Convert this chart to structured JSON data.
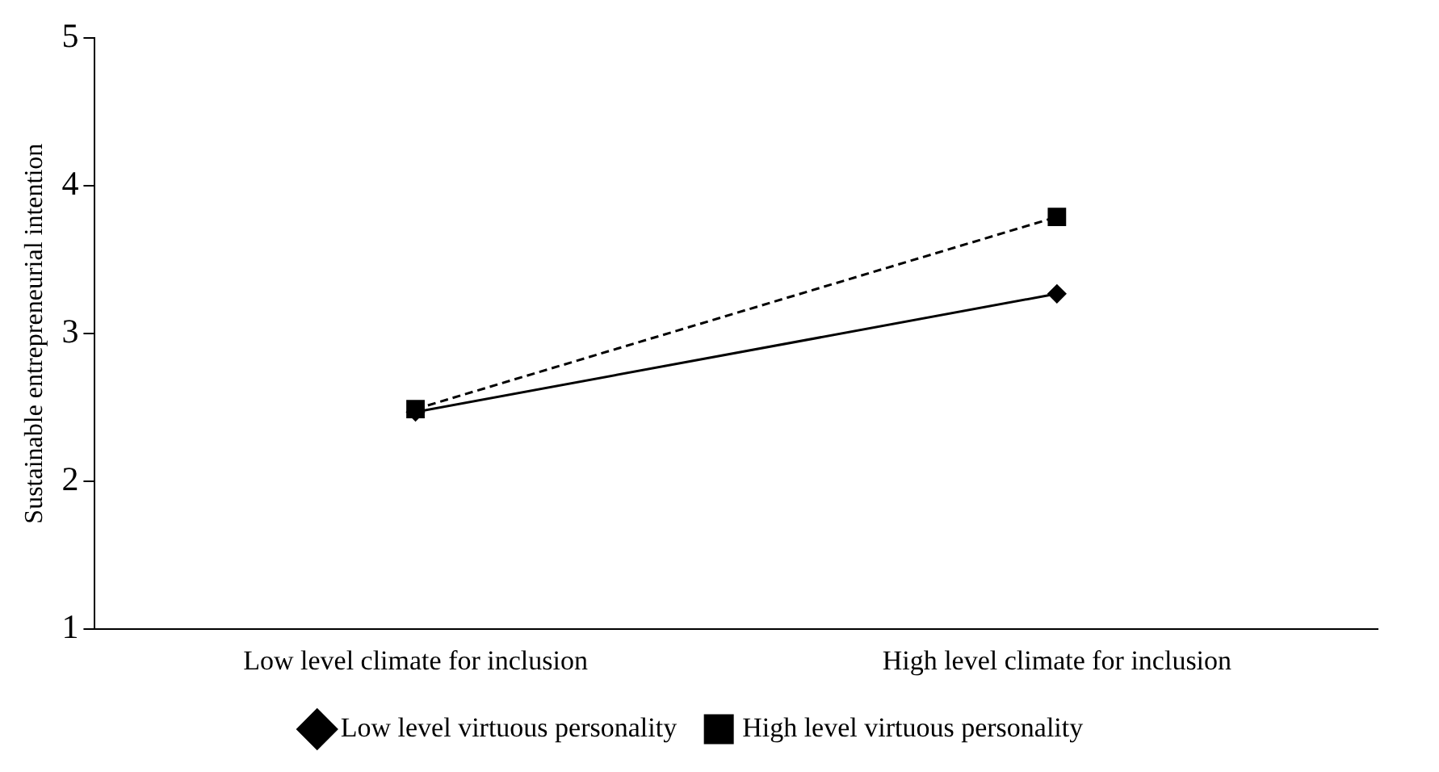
{
  "chart_data": {
    "type": "line",
    "ylabel": "Sustainable entrepreneurial intention",
    "categories": [
      "Low level climate for inclusion",
      "High level climate for inclusion"
    ],
    "series": [
      {
        "name": "Low level virtuous personality",
        "color": "#000000",
        "values": [
          2.47,
          3.27
        ],
        "marker": "diamond",
        "line_style": "solid"
      },
      {
        "name": "High level virtuous personality",
        "color": "#000000",
        "values": [
          2.49,
          3.79
        ],
        "marker": "square",
        "line_style": "dashed"
      }
    ],
    "ylim": [
      1,
      5
    ],
    "yticks": [
      1,
      2,
      3,
      4,
      5
    ],
    "grid": false,
    "legend": "bottom"
  }
}
